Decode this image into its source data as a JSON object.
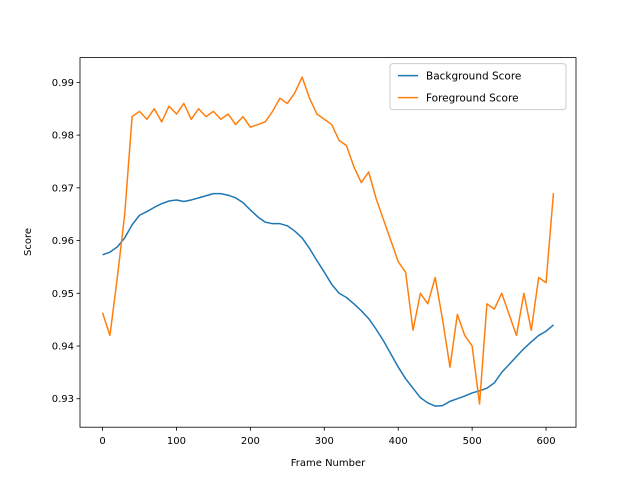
{
  "chart_data": {
    "type": "line",
    "xlabel": "Frame Number",
    "ylabel": "Score",
    "x": [
      0,
      10,
      20,
      30,
      40,
      50,
      60,
      70,
      80,
      90,
      100,
      110,
      120,
      130,
      140,
      150,
      160,
      170,
      180,
      190,
      200,
      210,
      220,
      230,
      240,
      250,
      260,
      270,
      280,
      290,
      300,
      310,
      320,
      330,
      340,
      350,
      360,
      370,
      380,
      390,
      400,
      410,
      420,
      430,
      440,
      450,
      460,
      470,
      480,
      490,
      500,
      510,
      520,
      530,
      540,
      550,
      560,
      570,
      580,
      590,
      600,
      610
    ],
    "series": [
      {
        "name": "Background Score",
        "color": "#1f77b4",
        "values": [
          0.9573,
          0.9578,
          0.9588,
          0.9605,
          0.963,
          0.9648,
          0.9655,
          0.9663,
          0.967,
          0.9675,
          0.9677,
          0.9674,
          0.9677,
          0.9681,
          0.9685,
          0.9689,
          0.9689,
          0.9686,
          0.9681,
          0.9672,
          0.9658,
          0.9645,
          0.9635,
          0.9632,
          0.9632,
          0.9628,
          0.9618,
          0.9605,
          0.9585,
          0.9562,
          0.954,
          0.9517,
          0.95,
          0.9492,
          0.948,
          0.9467,
          0.9452,
          0.9432,
          0.941,
          0.9385,
          0.936,
          0.9338,
          0.932,
          0.9302,
          0.9292,
          0.9286,
          0.9287,
          0.9295,
          0.93,
          0.9305,
          0.9311,
          0.9315,
          0.932,
          0.933,
          0.935,
          0.9365,
          0.938,
          0.9395,
          0.9408,
          0.942,
          0.9428,
          0.944
        ]
      },
      {
        "name": "Foreground Score",
        "color": "#ff7f0e",
        "values": [
          0.9463,
          0.942,
          0.953,
          0.965,
          0.9835,
          0.9845,
          0.983,
          0.985,
          0.9825,
          0.9855,
          0.984,
          0.986,
          0.983,
          0.985,
          0.9835,
          0.9845,
          0.983,
          0.984,
          0.982,
          0.9835,
          0.9815,
          0.982,
          0.9825,
          0.9845,
          0.987,
          0.986,
          0.988,
          0.991,
          0.987,
          0.984,
          0.983,
          0.982,
          0.979,
          0.978,
          0.974,
          0.971,
          0.973,
          0.968,
          0.964,
          0.96,
          0.956,
          0.954,
          0.943,
          0.95,
          0.948,
          0.953,
          0.945,
          0.936,
          0.946,
          0.942,
          0.94,
          0.929,
          0.948,
          0.947,
          0.95,
          0.946,
          0.942,
          0.95,
          0.943,
          0.953,
          0.952,
          0.969
        ]
      }
    ],
    "xlim": [
      -30.5,
      640.5
    ],
    "xticks": [
      0,
      100,
      200,
      300,
      400,
      500,
      600
    ],
    "ylim": [
      0.9246,
      0.9947
    ],
    "yticks": [
      0.93,
      0.94,
      0.95,
      0.96,
      0.97,
      0.98,
      0.99
    ],
    "grid": false,
    "legend": "upper right"
  }
}
